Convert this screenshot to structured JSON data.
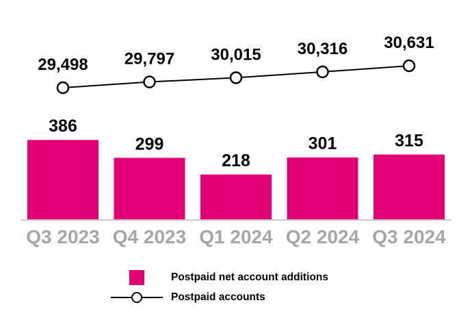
{
  "chart_data": {
    "type": "combo",
    "categories": [
      "Q3 2023",
      "Q4 2023",
      "Q1 2024",
      "Q2 2024",
      "Q3 2024"
    ],
    "series": [
      {
        "name": "Postpaid net account additions",
        "type": "bar",
        "values": [
          386,
          299,
          218,
          301,
          315
        ],
        "value_labels": [
          "386",
          "299",
          "218",
          "301",
          "315"
        ],
        "color": "#E20074"
      },
      {
        "name": "Postpaid accounts",
        "type": "line",
        "values": [
          29498,
          29797,
          30015,
          30316,
          30631
        ],
        "value_labels": [
          "29,498",
          "29,797",
          "30,015",
          "30,316",
          "30,631"
        ],
        "marker": "open-circle",
        "line_color": "#000000",
        "marker_fill": "#FFFFFF"
      }
    ],
    "grid": false,
    "legend_position": "bottom",
    "styles": {
      "category_label_color": "#A6A6A8",
      "axis_line_color": "#C8C8C8",
      "value_label_color": "#000000"
    }
  },
  "legend": {
    "items": [
      {
        "label": "Postpaid net account additions"
      },
      {
        "label": "Postpaid accounts"
      }
    ]
  }
}
